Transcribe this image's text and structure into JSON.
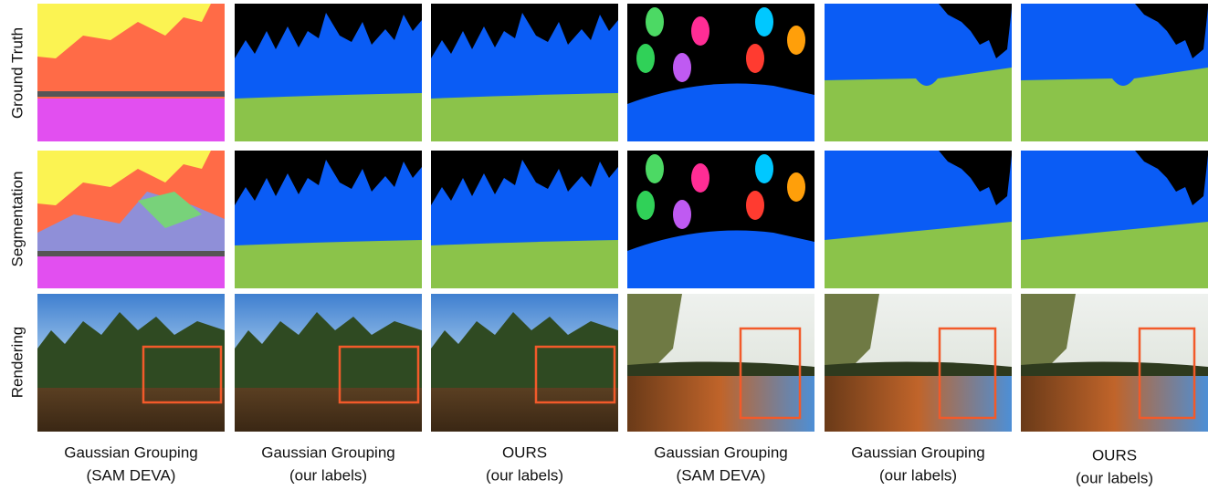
{
  "row_labels": [
    "Ground Truth",
    "Segmentation",
    "Rendering"
  ],
  "columns": [
    {
      "title": "Gaussian Grouping",
      "subtitle": "(SAM DEVA)"
    },
    {
      "title": "Gaussian Grouping",
      "subtitle": "(our labels)"
    },
    {
      "title": "OURS",
      "subtitle": "(our labels)"
    },
    {
      "title": "Gaussian Grouping",
      "subtitle": "(SAM DEVA)"
    },
    {
      "title": "Gaussian Grouping",
      "subtitle": "(our labels)"
    },
    {
      "title": "OURS",
      "subtitle": "(our labels)"
    }
  ]
}
